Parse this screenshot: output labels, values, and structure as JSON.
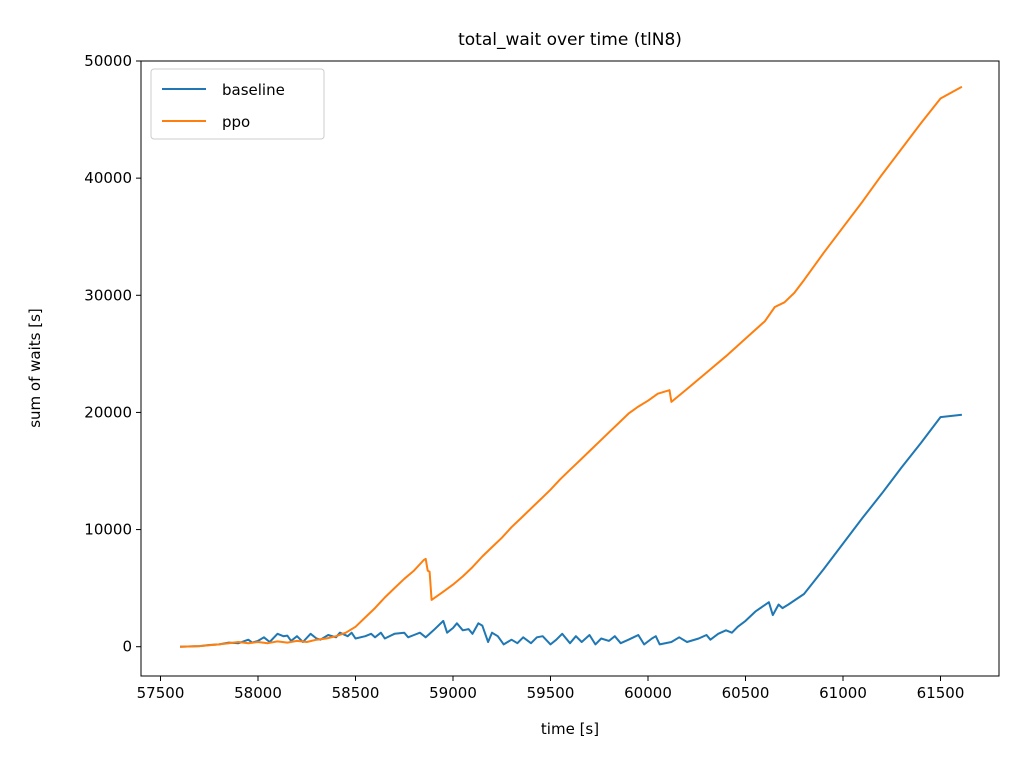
{
  "chart_data": {
    "type": "line",
    "title": "total_wait over time (tlN8)",
    "xlabel": "time [s]",
    "ylabel": "sum of waits [s]",
    "xlim": [
      57400,
      61800
    ],
    "ylim": [
      -2500,
      50000
    ],
    "xticks": [
      57500,
      58000,
      58500,
      59000,
      59500,
      60000,
      60500,
      61000,
      61500
    ],
    "yticks": [
      0,
      10000,
      20000,
      30000,
      40000,
      50000
    ],
    "grid": false,
    "legend_position": "top-left",
    "series": [
      {
        "name": "baseline",
        "color": "#1f77b4",
        "points": [
          [
            57600,
            0
          ],
          [
            57700,
            50
          ],
          [
            57750,
            150
          ],
          [
            57800,
            200
          ],
          [
            57850,
            350
          ],
          [
            57900,
            300
          ],
          [
            57950,
            600
          ],
          [
            57970,
            350
          ],
          [
            58000,
            500
          ],
          [
            58030,
            800
          ],
          [
            58060,
            400
          ],
          [
            58100,
            1100
          ],
          [
            58130,
            900
          ],
          [
            58150,
            950
          ],
          [
            58170,
            500
          ],
          [
            58200,
            900
          ],
          [
            58230,
            400
          ],
          [
            58270,
            1100
          ],
          [
            58300,
            700
          ],
          [
            58320,
            600
          ],
          [
            58360,
            1000
          ],
          [
            58400,
            800
          ],
          [
            58420,
            1200
          ],
          [
            58460,
            900
          ],
          [
            58480,
            1200
          ],
          [
            58500,
            700
          ],
          [
            58550,
            900
          ],
          [
            58580,
            1100
          ],
          [
            58600,
            800
          ],
          [
            58630,
            1200
          ],
          [
            58650,
            700
          ],
          [
            58700,
            1100
          ],
          [
            58750,
            1200
          ],
          [
            58770,
            800
          ],
          [
            58800,
            1000
          ],
          [
            58830,
            1200
          ],
          [
            58860,
            800
          ],
          [
            58900,
            1400
          ],
          [
            58950,
            2200
          ],
          [
            58970,
            1200
          ],
          [
            59000,
            1600
          ],
          [
            59020,
            2000
          ],
          [
            59050,
            1400
          ],
          [
            59080,
            1500
          ],
          [
            59100,
            1100
          ],
          [
            59130,
            2000
          ],
          [
            59150,
            1800
          ],
          [
            59180,
            400
          ],
          [
            59200,
            1200
          ],
          [
            59230,
            900
          ],
          [
            59260,
            200
          ],
          [
            59300,
            600
          ],
          [
            59330,
            300
          ],
          [
            59360,
            800
          ],
          [
            59400,
            300
          ],
          [
            59430,
            800
          ],
          [
            59460,
            900
          ],
          [
            59500,
            200
          ],
          [
            59530,
            600
          ],
          [
            59560,
            1100
          ],
          [
            59600,
            300
          ],
          [
            59630,
            900
          ],
          [
            59660,
            400
          ],
          [
            59700,
            1000
          ],
          [
            59730,
            200
          ],
          [
            59760,
            700
          ],
          [
            59800,
            500
          ],
          [
            59830,
            900
          ],
          [
            59860,
            300
          ],
          [
            59900,
            600
          ],
          [
            59950,
            1000
          ],
          [
            59980,
            200
          ],
          [
            60020,
            700
          ],
          [
            60040,
            900
          ],
          [
            60060,
            200
          ],
          [
            60120,
            400
          ],
          [
            60160,
            800
          ],
          [
            60200,
            400
          ],
          [
            60260,
            700
          ],
          [
            60300,
            1000
          ],
          [
            60320,
            600
          ],
          [
            60360,
            1100
          ],
          [
            60400,
            1400
          ],
          [
            60430,
            1200
          ],
          [
            60460,
            1700
          ],
          [
            60500,
            2200
          ],
          [
            60550,
            3000
          ],
          [
            60620,
            3800
          ],
          [
            60640,
            2700
          ],
          [
            60670,
            3600
          ],
          [
            60690,
            3300
          ],
          [
            60720,
            3600
          ],
          [
            60800,
            4500
          ],
          [
            60900,
            6600
          ],
          [
            61000,
            8800
          ],
          [
            61100,
            11000
          ],
          [
            61200,
            13100
          ],
          [
            61300,
            15300
          ],
          [
            61400,
            17400
          ],
          [
            61500,
            19600
          ],
          [
            61610,
            19800
          ]
        ]
      },
      {
        "name": "ppo",
        "color": "#ff7f0e",
        "points": [
          [
            57600,
            0
          ],
          [
            57700,
            50
          ],
          [
            57800,
            200
          ],
          [
            57850,
            300
          ],
          [
            57900,
            400
          ],
          [
            57950,
            300
          ],
          [
            58000,
            400
          ],
          [
            58050,
            300
          ],
          [
            58100,
            450
          ],
          [
            58150,
            350
          ],
          [
            58200,
            500
          ],
          [
            58250,
            400
          ],
          [
            58300,
            600
          ],
          [
            58350,
            700
          ],
          [
            58400,
            900
          ],
          [
            58450,
            1200
          ],
          [
            58500,
            1700
          ],
          [
            58550,
            2500
          ],
          [
            58600,
            3300
          ],
          [
            58650,
            4200
          ],
          [
            58700,
            5000
          ],
          [
            58750,
            5800
          ],
          [
            58800,
            6500
          ],
          [
            58850,
            7400
          ],
          [
            58860,
            7500
          ],
          [
            58870,
            6500
          ],
          [
            58880,
            6400
          ],
          [
            58890,
            4000
          ],
          [
            58950,
            4700
          ],
          [
            59000,
            5300
          ],
          [
            59050,
            6000
          ],
          [
            59100,
            6800
          ],
          [
            59150,
            7700
          ],
          [
            59200,
            8500
          ],
          [
            59250,
            9300
          ],
          [
            59300,
            10200
          ],
          [
            59350,
            11000
          ],
          [
            59400,
            11800
          ],
          [
            59450,
            12600
          ],
          [
            59500,
            13400
          ],
          [
            59550,
            14300
          ],
          [
            59600,
            15100
          ],
          [
            59650,
            15900
          ],
          [
            59700,
            16700
          ],
          [
            59750,
            17500
          ],
          [
            59800,
            18300
          ],
          [
            59850,
            19100
          ],
          [
            59900,
            19900
          ],
          [
            59950,
            20500
          ],
          [
            60000,
            21000
          ],
          [
            60050,
            21600
          ],
          [
            60110,
            21900
          ],
          [
            60120,
            20900
          ],
          [
            60200,
            22000
          ],
          [
            60300,
            23400
          ],
          [
            60400,
            24800
          ],
          [
            60500,
            26300
          ],
          [
            60600,
            27800
          ],
          [
            60650,
            29000
          ],
          [
            60700,
            29400
          ],
          [
            60750,
            30200
          ],
          [
            60800,
            31300
          ],
          [
            60900,
            33600
          ],
          [
            61000,
            35800
          ],
          [
            61100,
            38000
          ],
          [
            61200,
            40300
          ],
          [
            61300,
            42500
          ],
          [
            61400,
            44700
          ],
          [
            61500,
            46800
          ],
          [
            61610,
            47800
          ]
        ]
      }
    ]
  }
}
